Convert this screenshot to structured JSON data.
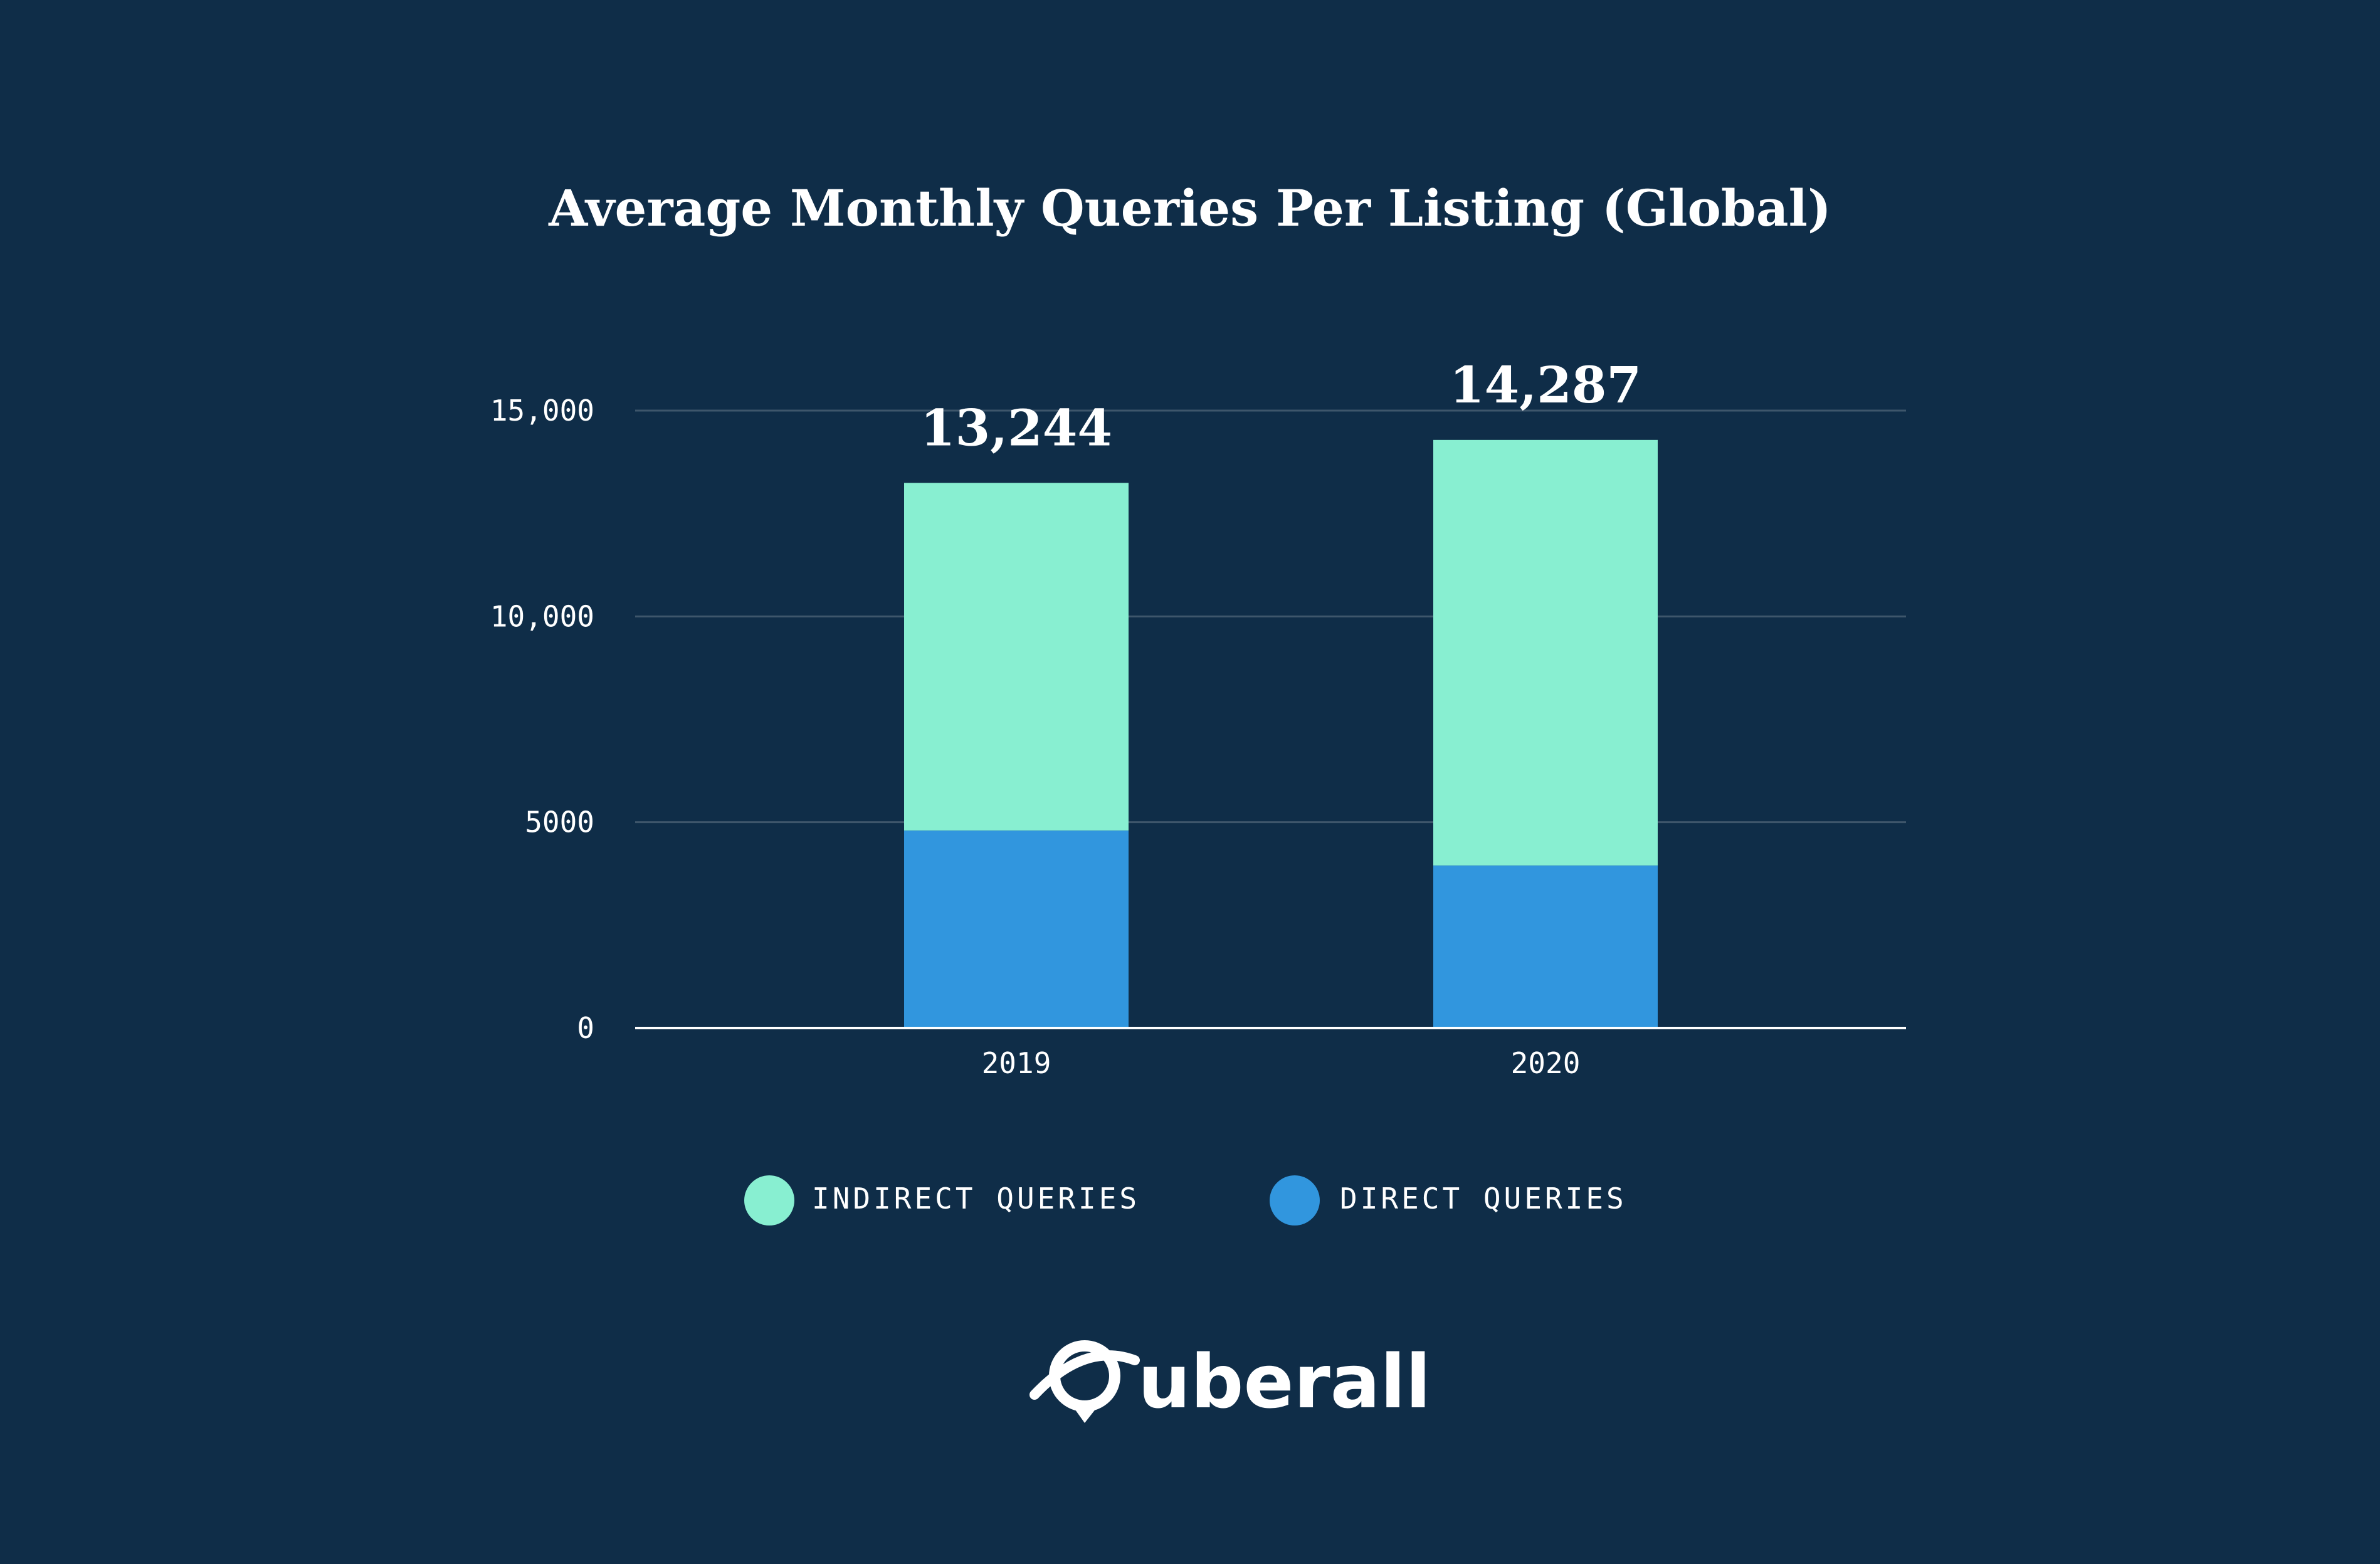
{
  "chart_data": {
    "type": "bar",
    "stacked": true,
    "title": "Average Monthly Queries Per Listing (Global)",
    "categories": [
      "2019",
      "2020"
    ],
    "series": [
      {
        "name": "DIRECT QUERIES",
        "values": [
          4800,
          3950
        ],
        "color": "#3196de"
      },
      {
        "name": "INDIRECT QUERIES",
        "values": [
          8444,
          10337
        ],
        "color": "#88efd1"
      }
    ],
    "totals": [
      "13,244",
      "14,287"
    ],
    "total_values": [
      13244,
      14287
    ],
    "ylim": [
      0,
      15000
    ],
    "yticks": [
      0,
      5000,
      10000,
      15000
    ],
    "ytick_labels": [
      "0",
      "5000",
      "10,000",
      "15,000"
    ],
    "grid": true,
    "legend": {
      "position": "bottom",
      "items": [
        {
          "label": "INDIRECT QUERIES",
          "color": "#88efd1"
        },
        {
          "label": "DIRECT QUERIES",
          "color": "#3196de"
        }
      ]
    }
  },
  "brand": {
    "name": "uberall",
    "logo_icon": "planet-pin-icon"
  }
}
